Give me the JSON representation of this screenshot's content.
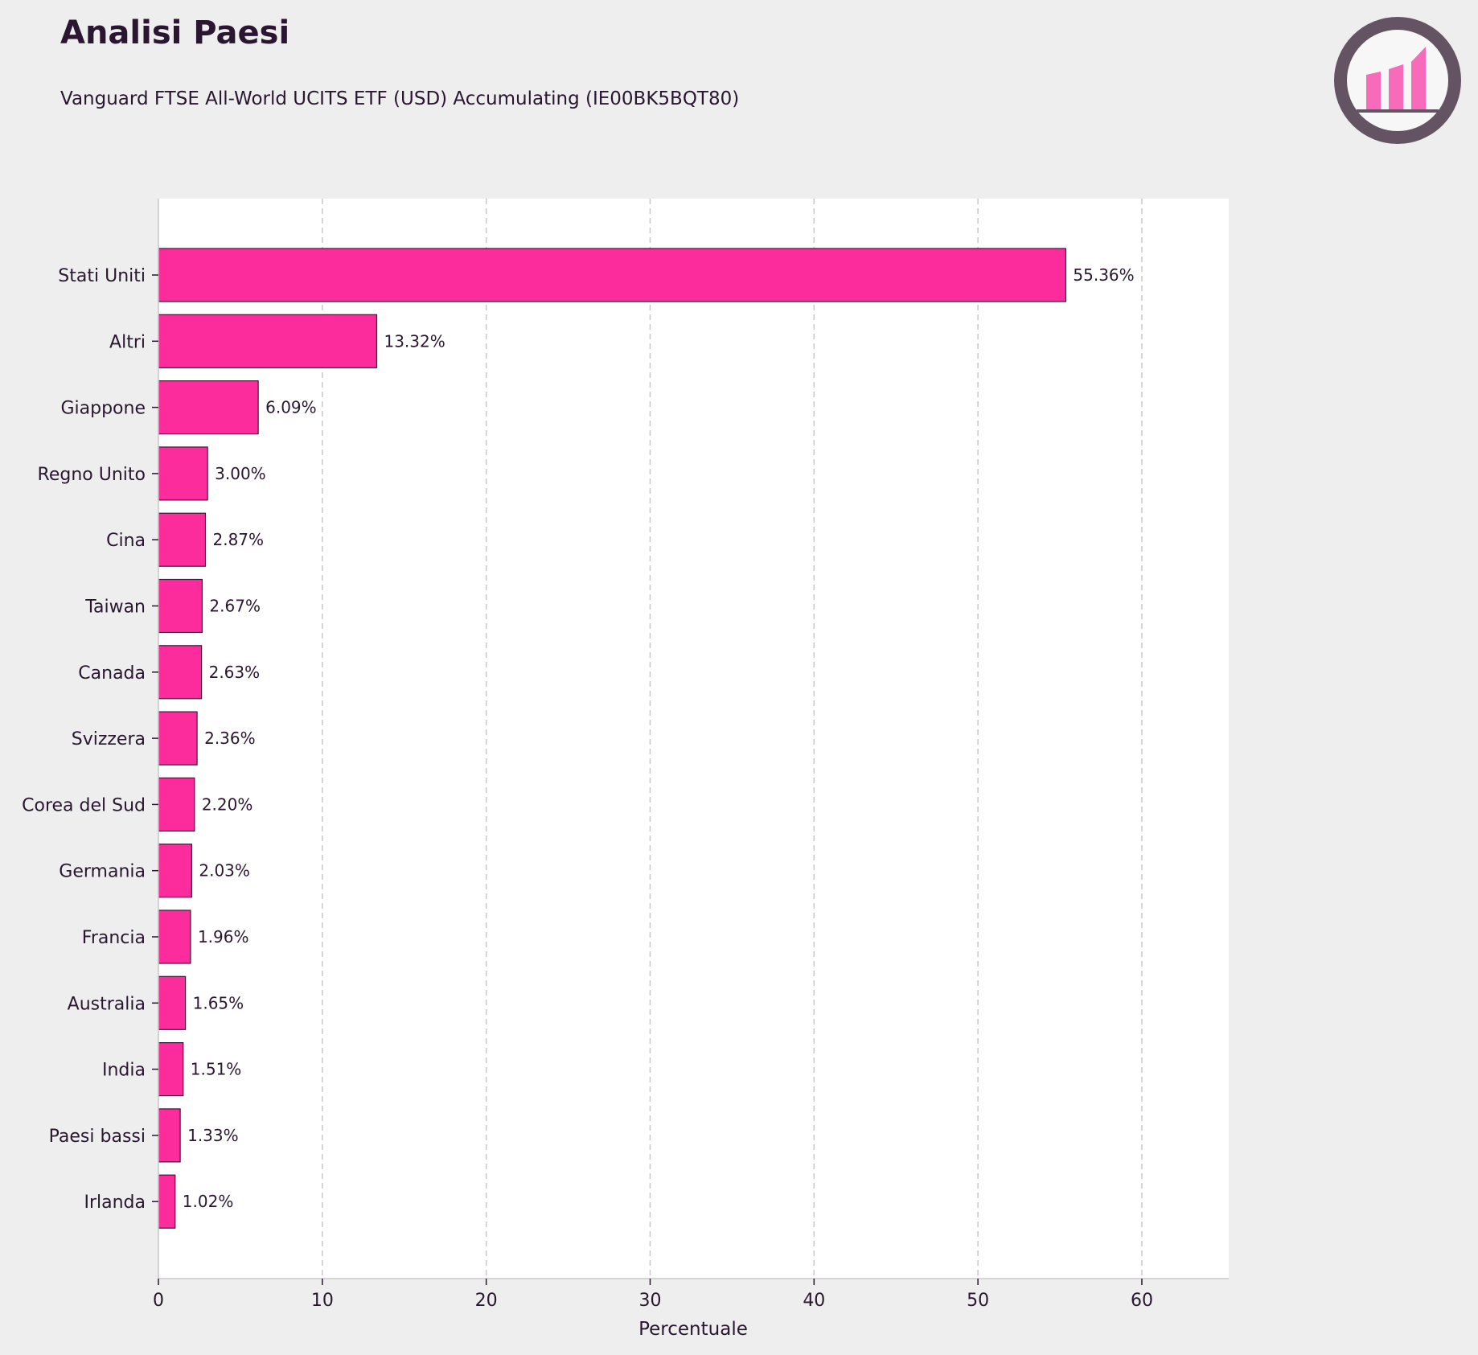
{
  "header": {
    "title": "Analisi Paesi",
    "subtitle": "Vanguard FTSE All-World UCITS ETF (USD) Accumulating (IE00BK5BQT80)"
  },
  "logo": {
    "icon": "bar-chart-logo-icon"
  },
  "colors": {
    "background": "#eeeeee",
    "plot_background": "#ffffff",
    "bar": "#fc2c9c",
    "bar_edge": "#3a1a3a",
    "text": "#2a1630",
    "grid": "#c8c8c8",
    "logo_ring": "#645463",
    "logo_bars": "#f76bba"
  },
  "chart_data": {
    "type": "bar",
    "orientation": "horizontal",
    "categories": [
      "Stati Uniti",
      "Altri",
      "Giappone",
      "Regno Unito",
      "Cina",
      "Taiwan",
      "Canada",
      "Svizzera",
      "Corea del Sud",
      "Germania",
      "Francia",
      "Australia",
      "India",
      "Paesi bassi",
      "Irlanda"
    ],
    "values": [
      55.36,
      13.32,
      6.09,
      3.0,
      2.87,
      2.67,
      2.63,
      2.36,
      2.2,
      2.03,
      1.96,
      1.65,
      1.51,
      1.33,
      1.02
    ],
    "value_labels": [
      "55.36%",
      "13.32%",
      "6.09%",
      "3.00%",
      "2.87%",
      "2.67%",
      "2.63%",
      "2.36%",
      "2.20%",
      "2.03%",
      "1.96%",
      "1.65%",
      "1.51%",
      "1.33%",
      "1.02%"
    ],
    "xlabel": "Percentuale",
    "ylabel": "",
    "xlim": [
      0,
      65.3
    ],
    "xticks": [
      0,
      10,
      20,
      30,
      40,
      50,
      60
    ],
    "xtick_labels": [
      "0",
      "10",
      "20",
      "30",
      "40",
      "50",
      "60"
    ],
    "grid": "x-dashed"
  }
}
